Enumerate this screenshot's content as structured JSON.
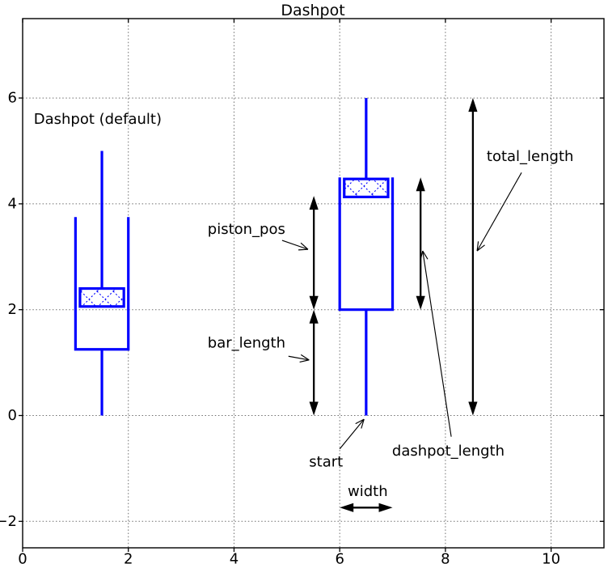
{
  "chart_data": {
    "type": "line",
    "title": "Dashpot",
    "axes": {
      "xlim": [
        0,
        11
      ],
      "ylim": [
        -2.5,
        7.5
      ],
      "xticks": {
        "values": [
          0,
          2,
          4,
          6,
          8,
          10
        ],
        "labels": [
          "0",
          "2",
          "4",
          "6",
          "8",
          "10"
        ]
      },
      "yticks": {
        "values": [
          -2,
          0,
          2,
          4,
          6
        ],
        "labels": [
          "−2",
          "0",
          "2",
          "4",
          "6"
        ]
      },
      "grid": "dotted"
    },
    "styles": {
      "shape_color": "#0000ff",
      "arrow_color": "#000000",
      "grid_color": "#6e6e6e",
      "spine_color": "#000000",
      "text_color": "#000000"
    },
    "figure_label": {
      "text": "Dashpot (default)",
      "x": 0.21,
      "y": 5.6,
      "align": "left"
    },
    "dashpots": [
      {
        "id": "left-default",
        "start": [
          1.5,
          0
        ],
        "geometry": {
          "bar": [
            [
              1.5,
              0
            ],
            [
              1.5,
              1.25
            ]
          ],
          "cylinder": [
            [
              1,
              3.75
            ],
            [
              1,
              1.25
            ],
            [
              2,
              1.25
            ],
            [
              2,
              3.75
            ]
          ],
          "piston_rect": {
            "x": 1.085,
            "y": 2.06,
            "w": 0.83,
            "h": 0.34
          },
          "rod": [
            [
              1.5,
              2.4
            ],
            [
              1.5,
              5
            ]
          ]
        }
      },
      {
        "id": "right-annotated",
        "start": [
          6.5,
          0
        ],
        "geometry": {
          "bar": [
            [
              6.5,
              0
            ],
            [
              6.5,
              2
            ]
          ],
          "cylinder": [
            [
              6,
              4.5
            ],
            [
              6,
              2
            ],
            [
              7,
              2
            ],
            [
              7,
              4.5
            ]
          ],
          "piston_rect": {
            "x": 6.085,
            "y": 4.13,
            "w": 0.83,
            "h": 0.34
          },
          "rod": [
            [
              6.5,
              4.47
            ],
            [
              6.5,
              6
            ]
          ]
        }
      }
    ],
    "dimension_arrows": [
      {
        "name": "piston_pos",
        "from": [
          5.51,
          2
        ],
        "to": [
          5.51,
          4.15
        ]
      },
      {
        "name": "bar_length",
        "from": [
          5.51,
          0
        ],
        "to": [
          5.51,
          2
        ]
      },
      {
        "name": "dashpot_length",
        "from": [
          7.53,
          2
        ],
        "to": [
          7.53,
          4.5
        ]
      },
      {
        "name": "total_length",
        "from": [
          8.52,
          0
        ],
        "to": [
          8.52,
          6
        ]
      },
      {
        "name": "width",
        "from": [
          6.0,
          -1.74
        ],
        "to": [
          7.0,
          -1.74
        ]
      }
    ],
    "annotations": [
      {
        "text": "piston_pos",
        "pos": [
          3.5,
          3.52
        ],
        "align": "left",
        "arrow_from": [
          4.91,
          3.31
        ],
        "arrow_to": [
          5.4,
          3.14
        ]
      },
      {
        "text": "bar_length",
        "pos": [
          3.5,
          1.37
        ],
        "align": "left",
        "arrow_from": [
          5.03,
          1.12
        ],
        "arrow_to": [
          5.42,
          1.05
        ]
      },
      {
        "text": "total_length",
        "pos": [
          8.78,
          4.89
        ],
        "align": "left",
        "arrow_from": [
          9.44,
          4.59
        ],
        "arrow_to": [
          8.6,
          3.11
        ]
      },
      {
        "text": "dashpot_length",
        "pos": [
          6.99,
          -0.67
        ],
        "align": "left",
        "arrow_from": [
          8.11,
          -0.4
        ],
        "arrow_to": [
          7.57,
          3.11
        ]
      },
      {
        "text": "start",
        "pos": [
          5.42,
          -0.88
        ],
        "align": "left",
        "arrow_from": [
          6.0,
          -0.63
        ],
        "arrow_to": [
          6.46,
          -0.07
        ]
      },
      {
        "text": "width",
        "pos": [
          6.53,
          -1.44
        ],
        "align": "center",
        "arrow_from": null,
        "arrow_to": null
      }
    ]
  }
}
